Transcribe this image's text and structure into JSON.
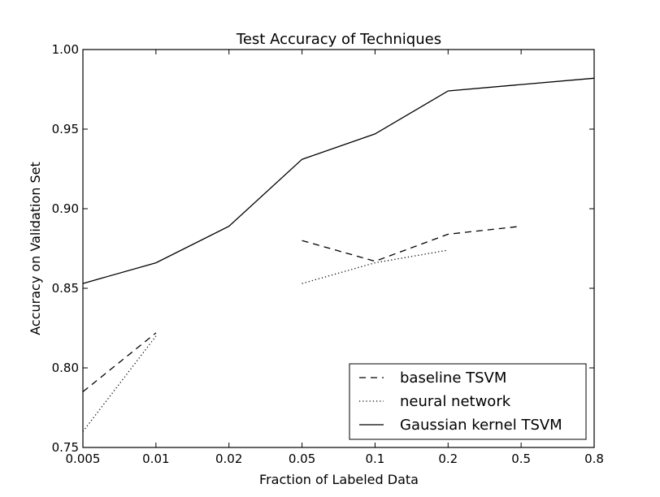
{
  "chart_data": {
    "type": "line",
    "title": "Test Accuracy of Techniques",
    "xlabel": "Fraction of Labeled Data",
    "ylabel": "Accuracy on Validation Set",
    "categories": [
      "0.005",
      "0.01",
      "0.02",
      "0.05",
      "0.1",
      "0.2",
      "0.5",
      "0.8"
    ],
    "ylim": [
      0.75,
      1.0
    ],
    "yticks": [
      "0.75",
      "0.80",
      "0.85",
      "0.90",
      "0.95",
      "1.00"
    ],
    "grid": false,
    "legend": "lower-right",
    "series": [
      {
        "name": "baseline TSVM",
        "style": "dashed",
        "values": [
          0.785,
          0.822,
          null,
          0.88,
          0.867,
          0.884,
          0.889,
          null
        ]
      },
      {
        "name": "neural network",
        "style": "dotted",
        "values": [
          0.76,
          0.82,
          null,
          0.853,
          0.866,
          0.874,
          null,
          null
        ]
      },
      {
        "name": "Gaussian kernel TSVM",
        "style": "solid",
        "values": [
          0.853,
          0.866,
          0.889,
          0.931,
          0.947,
          0.974,
          0.978,
          0.982
        ]
      }
    ]
  }
}
